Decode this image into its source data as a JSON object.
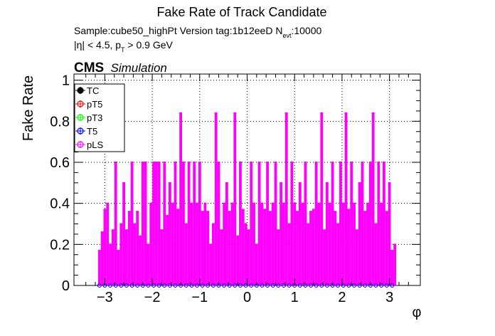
{
  "colors": {
    "TC": "#000000",
    "pT5": "#ff0000",
    "pT3": "#00ff00",
    "T5": "#0000ff",
    "pLS": "#ff00ff",
    "grid": "#000000",
    "frame": "#000000"
  },
  "chart_data": {
    "type": "bar",
    "title": "Fake Rate of Track Candidate",
    "info_line1": "Sample:cube50_highPt   Version tag:1b12eeD  N",
    "info_line1_sub": "evt",
    "info_line1_tail": ":10000",
    "info_line2_pre": "|η| < 4.5, p",
    "info_line2_sub": "T",
    "info_line2_tail": " > 0.9 GeV",
    "cms_label": "CMS",
    "cms_sub": "Simulation",
    "xlabel": "φ",
    "ylabel": "Fake Rate",
    "xlim": [
      -3.65,
      3.65
    ],
    "ylim": [
      0,
      1.03
    ],
    "xticks": [
      -3,
      -2,
      -1,
      0,
      1,
      2,
      3
    ],
    "xtick_labels": [
      "−3",
      "−2",
      "−1",
      "0",
      "1",
      "2",
      "3"
    ],
    "yticks": [
      0,
      0.2,
      0.4,
      0.6,
      0.8,
      1
    ],
    "ytick_labels": [
      "0",
      "0.2",
      "0.4",
      "0.6",
      "0.8",
      "1"
    ],
    "grid": true,
    "legend_position": "top-left",
    "legend": [
      "TC",
      "pT5",
      "pT3",
      "T5",
      "pLS"
    ],
    "bin_range": [
      -3.14159,
      3.14159
    ],
    "series": [
      {
        "name": "TC",
        "values": []
      },
      {
        "name": "pT5",
        "values": []
      },
      {
        "name": "pT3",
        "values": []
      },
      {
        "name": "T5",
        "values": []
      },
      {
        "name": "pLS",
        "values": [
          0.17,
          0.26,
          0.37,
          0.4,
          0.2,
          0.27,
          0.6,
          0.17,
          0.3,
          0.5,
          0.27,
          0.36,
          0.6,
          0.3,
          0.36,
          0.24,
          0.6,
          0.6,
          0.2,
          0.4,
          0.6,
          0.6,
          0.6,
          0.27,
          0.6,
          0.34,
          0.5,
          0.4,
          0.6,
          0.37,
          0.84,
          0.6,
          0.3,
          0.6,
          0.4,
          0.6,
          0.4,
          0.6,
          0.36,
          0.4,
          0.36,
          0.2,
          0.3,
          0.84,
          0.6,
          0.27,
          0.4,
          0.5,
          0.36,
          0.4,
          0.84,
          0.24,
          0.6,
          0.37,
          0.3,
          0.27,
          0.6,
          0.4,
          0.2,
          0.6,
          0.4,
          0.37,
          0.6,
          0.36,
          0.4,
          0.6,
          0.27,
          0.5,
          0.4,
          0.84,
          0.3,
          0.6,
          0.4,
          0.36,
          0.5,
          0.4,
          0.6,
          0.3,
          0.36,
          0.37,
          0.6,
          0.4,
          0.84,
          0.27,
          0.5,
          0.4,
          0.6,
          0.36,
          0.3,
          0.6,
          0.4,
          0.84,
          0.37,
          0.6,
          0.4,
          0.27,
          0.5,
          0.6,
          0.36,
          0.4,
          0.6,
          0.84,
          0.3,
          0.6,
          0.4,
          0.6,
          0.36,
          0.5,
          0.17,
          0.2
        ]
      }
    ]
  }
}
